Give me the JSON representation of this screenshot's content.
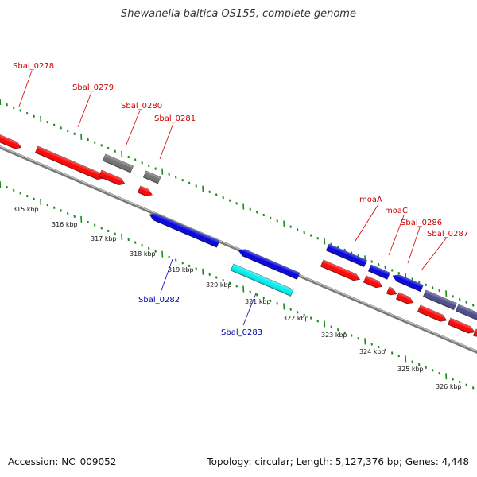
{
  "title": "Shewanella baltica OS155, complete genome",
  "footer": {
    "accession": "Accession: NC_009052",
    "summary": "Topology: circular; Length: 5,127,376 bp; Genes: 4,448"
  },
  "colors": {
    "forward_gene": "#ff0000",
    "gray_gene": "#707070",
    "reverse_gene": "#0000dd",
    "cyan_gene": "#00eeee",
    "slate_gene": "#4a4a8c",
    "forward_label": "#cc0000",
    "reverse_label": "#0000aa",
    "tick": "#1a8c1a",
    "backbone": "#7a7a7a"
  },
  "kbp_labels": [
    "315 kbp",
    "316 kbp",
    "317 kbp",
    "318 kbp",
    "319 kbp",
    "320 kbp",
    "321 kbp",
    "322 kbp",
    "323 kbp",
    "324 kbp",
    "325 kbp",
    "326 kbp"
  ],
  "forward_labels": [
    "Sbal_0278",
    "Sbal_0279",
    "Sbal_0280",
    "Sbal_0281",
    "moaA",
    "moaC",
    "Sbal_0286",
    "Sbal_0287"
  ],
  "reverse_labels": [
    "Sbal_0282",
    "Sbal_0283"
  ]
}
